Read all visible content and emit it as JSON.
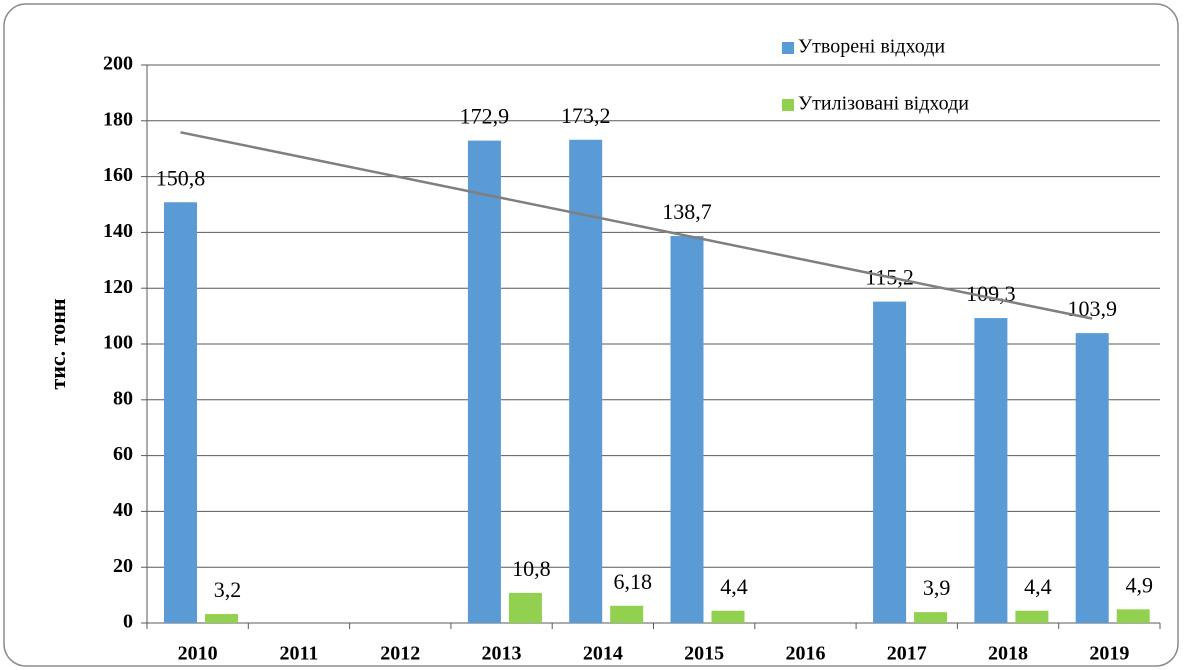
{
  "chart_data": {
    "type": "bar",
    "y_axis_label": "тис. тонн",
    "categories": [
      "2010",
      "2011",
      "2012",
      "2013",
      "2014",
      "2015",
      "2016",
      "2017",
      "2018",
      "2019"
    ],
    "series": [
      {
        "name": "Утворені відходи",
        "color": "#5b9bd5",
        "values": [
          150.8,
          null,
          null,
          172.9,
          173.2,
          138.7,
          null,
          115.2,
          109.3,
          103.9
        ],
        "value_labels": [
          "150,8",
          null,
          null,
          "172,9",
          "173,2",
          "138,7",
          null,
          "115,2",
          "109,3",
          "103,9"
        ]
      },
      {
        "name": "Утилізовані відходи",
        "color": "#92d050",
        "values": [
          3.2,
          null,
          null,
          10.8,
          6.18,
          4.4,
          null,
          3.9,
          4.4,
          4.9
        ],
        "value_labels": [
          "3,2",
          null,
          null,
          "10,8",
          "6,18",
          "4,4",
          null,
          "3,9",
          "4,4",
          "4,9"
        ]
      }
    ],
    "ylim": [
      0,
      200
    ],
    "yticks": [
      0,
      20,
      40,
      60,
      80,
      100,
      120,
      140,
      160,
      180,
      200
    ],
    "grid": true,
    "legend": "top-right",
    "trendline": "linear",
    "trendline_color": "#7f7f7f"
  }
}
